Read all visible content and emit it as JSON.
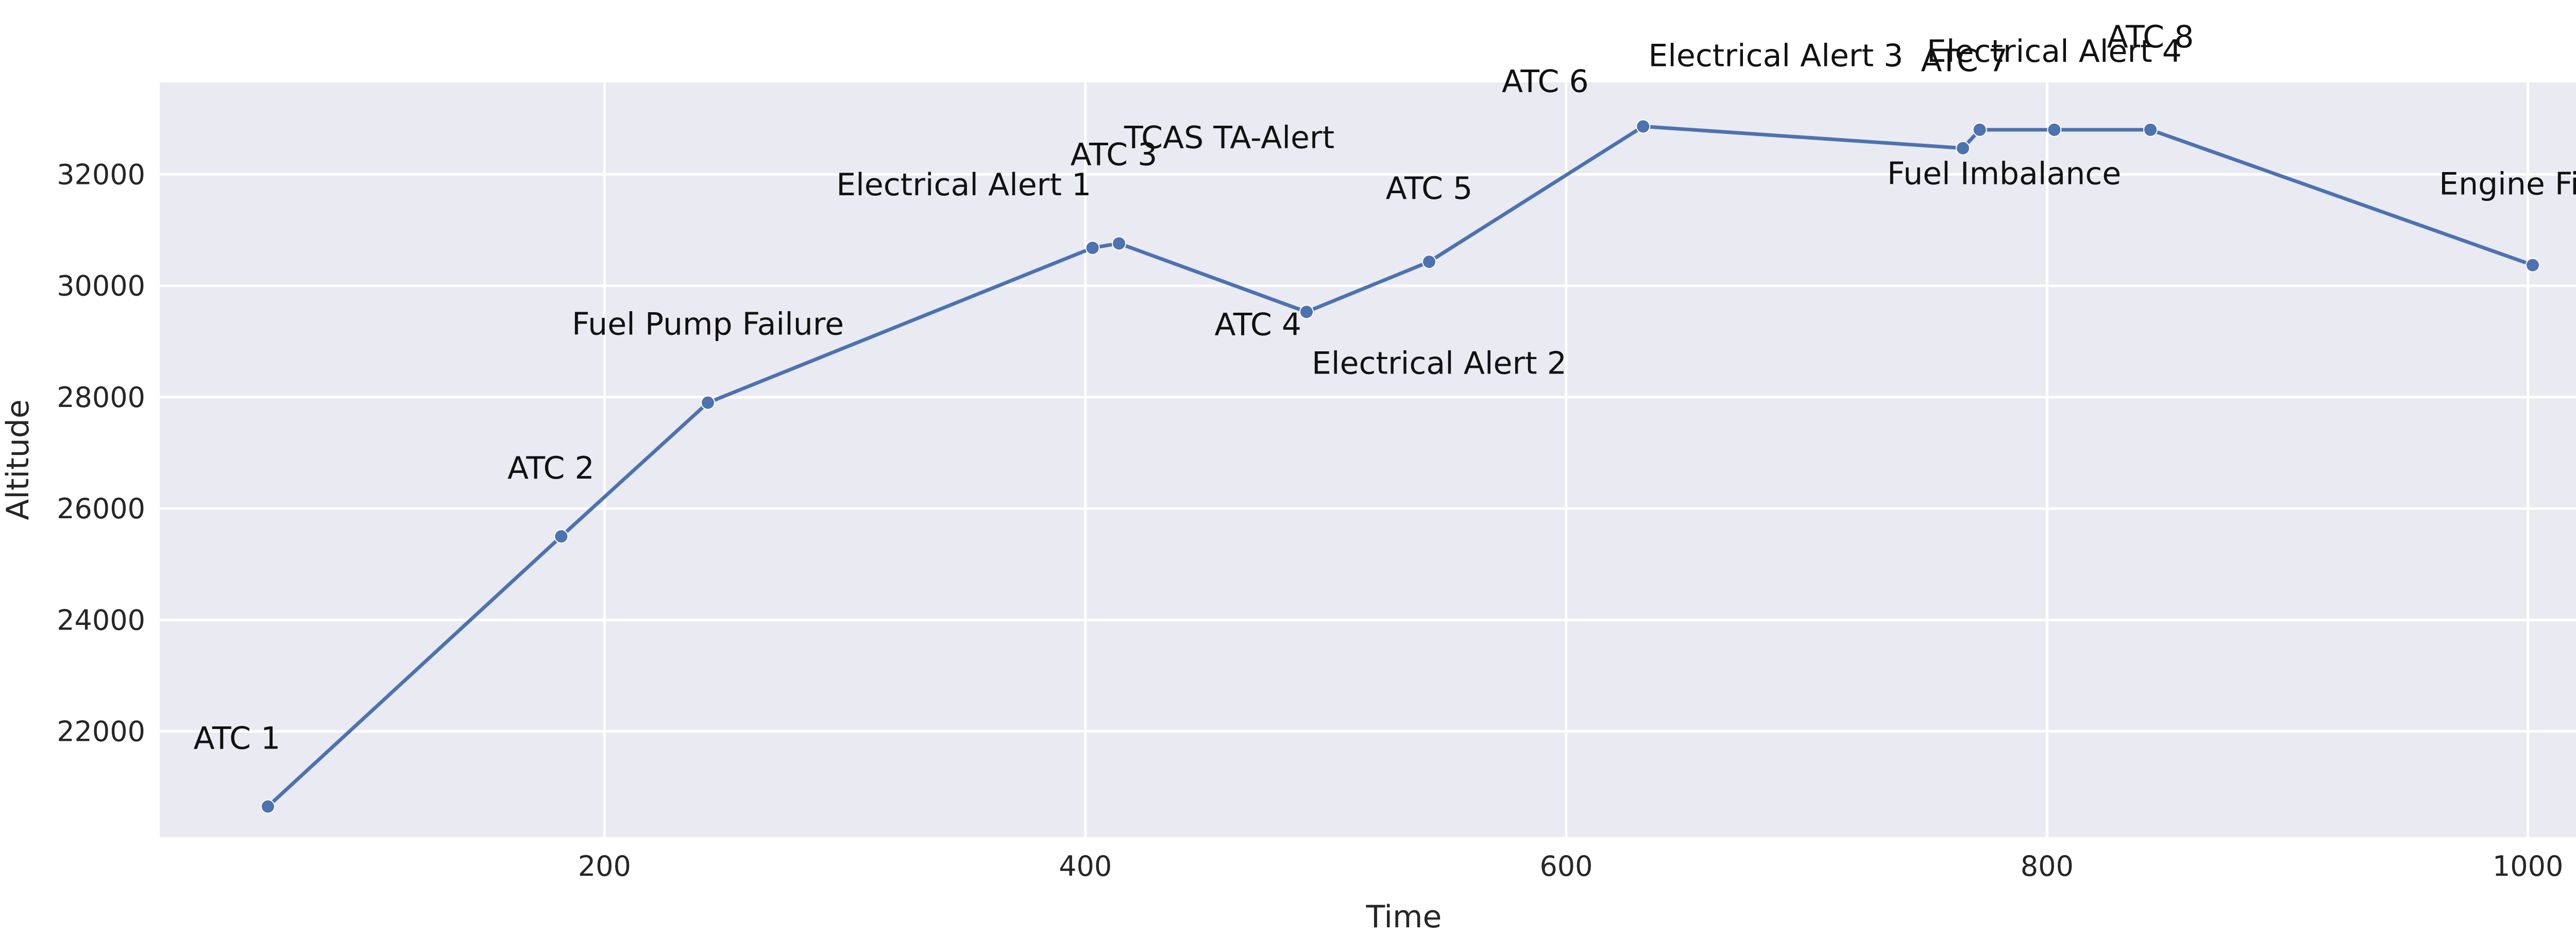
{
  "colors": {
    "plot_background": "#eaeaf2",
    "grid": "#ffffff",
    "series": "#4c72b0"
  },
  "chart_data": {
    "type": "line",
    "title": "",
    "xlabel": "Time",
    "ylabel": "Altitude",
    "xlim": [
      15,
      1050
    ],
    "ylim": [
      20100,
      33650
    ],
    "xticks": [
      200,
      400,
      600,
      800,
      1000
    ],
    "yticks": [
      22000,
      24000,
      26000,
      28000,
      30000,
      32000
    ],
    "grid": true,
    "series": [
      {
        "markers": true,
        "points": [
          {
            "x": 60,
            "y": 20650
          },
          {
            "x": 182,
            "y": 25500
          },
          {
            "x": 243,
            "y": 27900
          },
          {
            "x": 403,
            "y": 30680
          },
          {
            "x": 414,
            "y": 30760
          },
          {
            "x": 492,
            "y": 29530
          },
          {
            "x": 543,
            "y": 30430
          },
          {
            "x": 632,
            "y": 32860
          },
          {
            "x": 765,
            "y": 32470
          },
          {
            "x": 772,
            "y": 32800
          },
          {
            "x": 803,
            "y": 32800
          },
          {
            "x": 843,
            "y": 32800
          },
          {
            "x": 1002,
            "y": 30370
          }
        ]
      }
    ],
    "annotations": [
      {
        "text": "ATC 1",
        "x": 60,
        "y": 20650,
        "position": "above-left"
      },
      {
        "text": "ATC 2",
        "x": 182,
        "y": 25500,
        "position": "above-left"
      },
      {
        "text": "Fuel Pump Failure",
        "x": 243,
        "y": 27900,
        "position": "above"
      },
      {
        "text": "Electrical Alert 1",
        "x": 403,
        "y": 30680,
        "position": "above-left"
      },
      {
        "text": "ATC 3",
        "x": 414,
        "y": 30760,
        "position": "above"
      },
      {
        "text": "TCAS TA-Alert",
        "x": 414,
        "y": 30760,
        "position": "above-right-high"
      },
      {
        "text": "ATC 4",
        "x": 492,
        "y": 29530,
        "position": "below-left"
      },
      {
        "text": "Electrical Alert 2",
        "x": 492,
        "y": 29530,
        "position": "below-right"
      },
      {
        "text": "ATC 5",
        "x": 543,
        "y": 30430,
        "position": "above"
      },
      {
        "text": "ATC 6",
        "x": 632,
        "y": 32860,
        "position": "above-left"
      },
      {
        "text": "Electrical Alert 3",
        "x": 632,
        "y": 32860,
        "position": "above-right-high"
      },
      {
        "text": "Fuel Imbalance",
        "x": 765,
        "y": 32470,
        "position": "below"
      },
      {
        "text": "ATC 7",
        "x": 772,
        "y": 32800,
        "position": "above"
      },
      {
        "text": "Electrical Alert 4",
        "x": 803,
        "y": 32800,
        "position": "above-high"
      },
      {
        "text": "ATC 8",
        "x": 843,
        "y": 32800,
        "position": "above-highest"
      },
      {
        "text": "Engine Fire Alert",
        "x": 1002,
        "y": 30370,
        "position": "above"
      }
    ]
  }
}
